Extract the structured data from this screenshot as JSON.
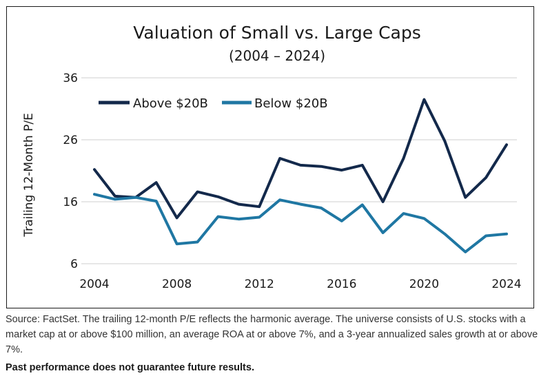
{
  "chart_data": {
    "type": "line",
    "title": "Valuation of Small vs. Large Caps",
    "subtitle": "(2004 – 2024)",
    "ylabel": "Trailing 12-Month P/E",
    "xlabel": "",
    "ylim": [
      6,
      36
    ],
    "yticks": [
      6,
      16,
      26,
      36
    ],
    "xlim": [
      2004,
      2024
    ],
    "xticks": [
      2004,
      2008,
      2012,
      2016,
      2020,
      2024
    ],
    "grid": "horizontal",
    "legend": "top-left",
    "x": [
      2004,
      2005,
      2006,
      2007,
      2008,
      2009,
      2010,
      2011,
      2012,
      2013,
      2014,
      2015,
      2016,
      2017,
      2018,
      2019,
      2020,
      2021,
      2022,
      2023,
      2024
    ],
    "series": [
      {
        "name": "Above $20B",
        "color": "#13294b",
        "values": [
          21.2,
          16.9,
          16.7,
          19.1,
          13.4,
          17.6,
          16.8,
          15.6,
          15.2,
          23.0,
          21.9,
          21.7,
          21.1,
          21.9,
          16.0,
          23.0,
          32.5,
          25.8,
          16.7,
          19.9,
          25.2
        ]
      },
      {
        "name": "Below $20B",
        "color": "#1f77a3",
        "values": [
          17.2,
          16.4,
          16.7,
          16.1,
          9.2,
          9.5,
          13.6,
          13.2,
          13.5,
          16.3,
          15.6,
          15.0,
          12.9,
          15.5,
          11.0,
          14.1,
          13.3,
          10.8,
          7.9,
          10.5,
          10.8
        ]
      }
    ]
  },
  "footnote": "Source: FactSet. The trailing 12-month P/E reflects the harmonic average. The universe consists of U.S. stocks with a market cap at or above $100 million, an average ROA at or above 7%, and a 3-year annualized sales growth at or above 7%.",
  "disclaimer": "Past performance does not guarantee future results."
}
